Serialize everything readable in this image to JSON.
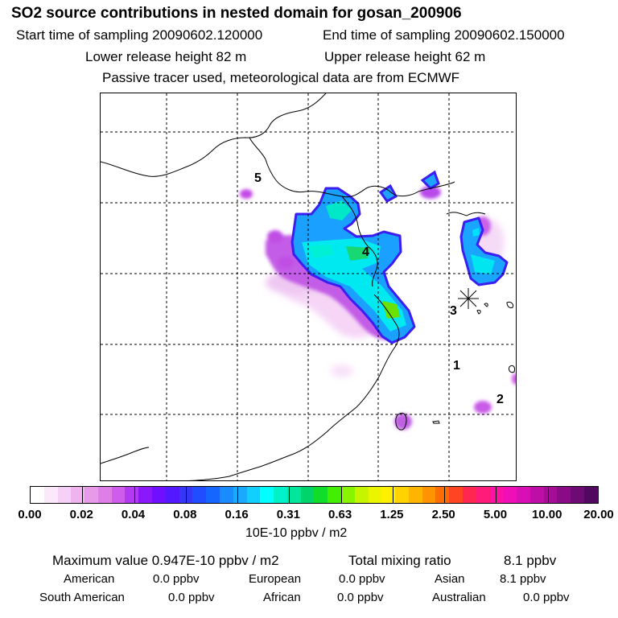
{
  "header": {
    "title": "SO2 source contributions in nested domain for gosan_200906",
    "start_label": "Start time of sampling 20090602.120000",
    "end_label": "End time of sampling 20090602.150000",
    "lower_label": "Lower release height   82 m",
    "upper_label": "Upper release height   62 m",
    "tracer_note": "Passive tracer used, meteorological data are from ECMWF"
  },
  "map": {
    "region_labels": [
      "1",
      "2",
      "3",
      "4",
      "5"
    ],
    "site_marker": "asterisk-icon"
  },
  "colorbar": {
    "ticks": [
      "0.00",
      "0.02",
      "0.04",
      "0.08",
      "0.16",
      "0.31",
      "0.63",
      "1.25",
      "2.50",
      "5.00",
      "10.00",
      "20.00"
    ],
    "units": "10E-10 ppbv / m2",
    "colors": [
      "#ffffff",
      "#fbe9fb",
      "#f6d0f6",
      "#efb3f0",
      "#e69be8",
      "#dd7fe6",
      "#cf5cea",
      "#b23bf2",
      "#8b18fb",
      "#6e10ff",
      "#5318ff",
      "#3438f6",
      "#1f4dff",
      "#1466ff",
      "#1b8cff",
      "#17aaff",
      "#11cfff",
      "#00ffff",
      "#00f2c8",
      "#00e69c",
      "#00d46b",
      "#0fdd2a",
      "#44ee00",
      "#88f400",
      "#c5f600",
      "#ecf400",
      "#fff000",
      "#ffd200",
      "#ffb400",
      "#ff9400",
      "#ff6c00",
      "#ff4424",
      "#ff2650",
      "#ff1b7a",
      "#ff12a5",
      "#f00fb6",
      "#d80fb4",
      "#bf0ea8",
      "#a50d97",
      "#8a0b85",
      "#6e0a73",
      "#520860"
    ]
  },
  "stats": {
    "max_label": "Maximum value  0.947E-10 ppbv / m2",
    "total_label": "Total mixing ratio",
    "total_value": "8.1 ppbv",
    "american_label": "American",
    "american_value": "0.0 ppbv",
    "european_label": "European",
    "european_value": "0.0 ppbv",
    "asian_label": "Asian",
    "asian_value": "8.1 ppbv",
    "south_american_label": "South American",
    "south_american_value": "0.0 ppbv",
    "african_label": "African",
    "african_value": "0.0 ppbv",
    "australian_label": "Australian",
    "australian_value": "0.0 ppbv"
  }
}
